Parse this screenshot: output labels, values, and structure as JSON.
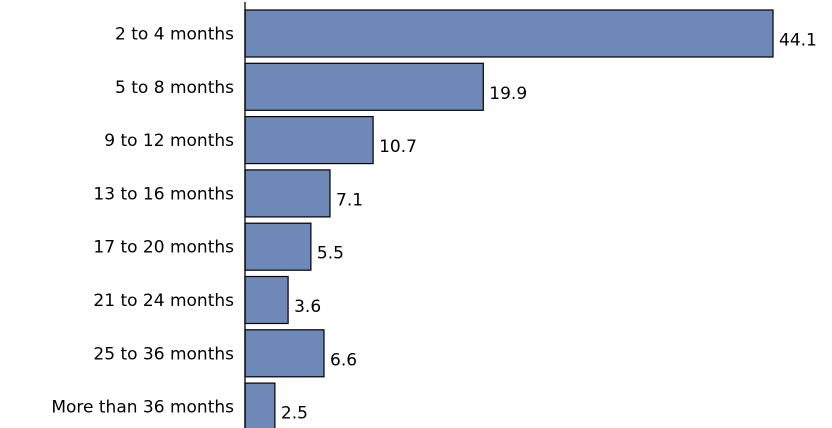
{
  "chart_data": {
    "type": "bar",
    "orientation": "horizontal",
    "title": "",
    "xlabel": "",
    "ylabel": "",
    "categories": [
      "2 to 4 months",
      "5 to 8 months",
      "9 to 12 months",
      "13 to 16 months",
      "17 to 20 months",
      "21 to 24 months",
      "25 to 36 months",
      "More than 36 months"
    ],
    "values": [
      44.1,
      19.9,
      10.7,
      7.1,
      5.5,
      3.6,
      6.6,
      2.5
    ],
    "value_labels": [
      "44.1",
      "19.9",
      "10.7",
      "7.1",
      "5.5",
      "3.6",
      "6.6",
      "2.5"
    ],
    "xlim": [
      0,
      44.1
    ],
    "grid": false,
    "legend": "none",
    "bar_color": "#6e89b7",
    "bar_edge_color": "#000000",
    "axis_color": "#000000"
  }
}
